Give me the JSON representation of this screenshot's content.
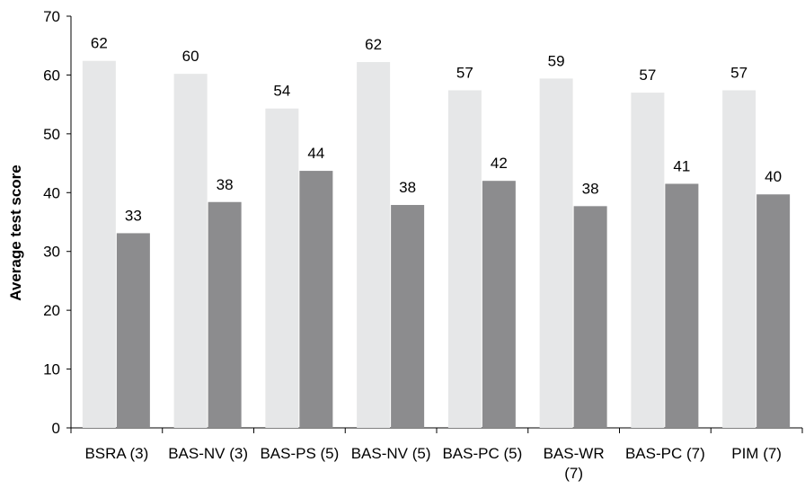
{
  "chart_data": {
    "type": "bar",
    "title": "",
    "xlabel": "",
    "ylabel": "Average test score",
    "ylim": [
      0,
      70
    ],
    "y_ticks": [
      0,
      10,
      20,
      30,
      40,
      50,
      60,
      70
    ],
    "grid": false,
    "legend": "none",
    "categories": [
      [
        "BSRA (3)"
      ],
      [
        "BAS-NV (3)"
      ],
      [
        "BAS-PS (5)"
      ],
      [
        "BAS-NV (5)"
      ],
      [
        "BAS-PC (5)"
      ],
      [
        "BAS-WR",
        "(7)"
      ],
      [
        "BAS-PC (7)"
      ],
      [
        "PIM (7)"
      ]
    ],
    "series": [
      {
        "values": [
          62.4,
          60.2,
          54.3,
          62.2,
          57.4,
          59.4,
          57.0,
          57.4
        ],
        "labels": [
          "62",
          "60",
          "54",
          "62",
          "57",
          "59",
          "57",
          "57"
        ],
        "color": "#e6e7e8"
      },
      {
        "values": [
          33.1,
          38.4,
          43.7,
          37.9,
          42.0,
          37.7,
          41.5,
          39.7
        ],
        "labels": [
          "33",
          "38",
          "44",
          "38",
          "42",
          "38",
          "41",
          "40"
        ],
        "color": "#8c8c8e"
      }
    ]
  }
}
